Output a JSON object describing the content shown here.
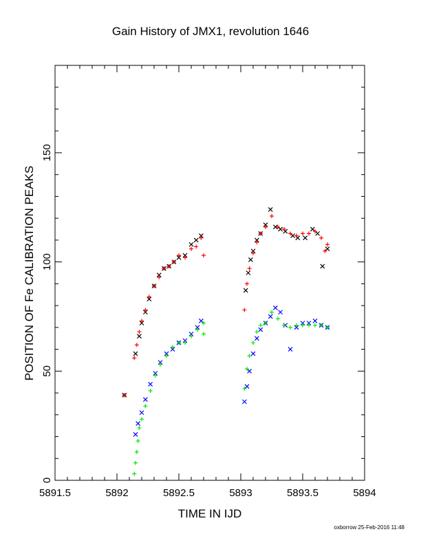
{
  "page": {
    "title": "Gain History of JMX1, revolution 1646",
    "footer": "oxborrow 25-Feb-2016 11:48"
  },
  "chart_data": {
    "type": "scatter",
    "title": "Gain History of JMX1, revolution 1646",
    "xlabel": "TIME IN IJD",
    "ylabel": "POSITION OF Fe CALIBRATION PEAKS",
    "xlim": [
      5891.5,
      5894
    ],
    "ylim": [
      0,
      190
    ],
    "xticks": [
      "5891.5",
      "5892",
      "5892.5",
      "5893",
      "5893.5",
      "5894"
    ],
    "xtick_values": [
      5891.5,
      5892,
      5892.5,
      5893,
      5893.5,
      5894
    ],
    "yticks": [
      "0",
      "50",
      "100",
      "150"
    ],
    "ytick_values": [
      0,
      50,
      100,
      150
    ],
    "grid": false,
    "legend": "none",
    "series": [
      {
        "color": "#000000",
        "marker": "x",
        "points": [
          [
            5892.06,
            39
          ],
          [
            5892.15,
            58
          ],
          [
            5892.18,
            66
          ],
          [
            5892.2,
            72
          ],
          [
            5892.23,
            77
          ],
          [
            5892.26,
            83
          ],
          [
            5892.3,
            89
          ],
          [
            5892.34,
            94
          ],
          [
            5892.38,
            97
          ],
          [
            5892.42,
            98
          ],
          [
            5892.46,
            100
          ],
          [
            5892.5,
            102
          ],
          [
            5892.55,
            103
          ],
          [
            5892.6,
            108
          ],
          [
            5892.64,
            110
          ],
          [
            5892.68,
            112
          ],
          [
            5893.04,
            87
          ],
          [
            5893.06,
            95
          ],
          [
            5893.08,
            101
          ],
          [
            5893.1,
            105
          ],
          [
            5893.13,
            110
          ],
          [
            5893.16,
            113
          ],
          [
            5893.2,
            117
          ],
          [
            5893.24,
            124
          ],
          [
            5893.28,
            116
          ],
          [
            5893.32,
            115
          ],
          [
            5893.36,
            114
          ],
          [
            5893.42,
            112
          ],
          [
            5893.46,
            111
          ],
          [
            5893.52,
            111
          ],
          [
            5893.58,
            115
          ],
          [
            5893.62,
            113
          ],
          [
            5893.66,
            98
          ],
          [
            5893.7,
            106
          ]
        ]
      },
      {
        "color": "#ff0000",
        "marker": "+",
        "points": [
          [
            5892.06,
            39
          ],
          [
            5892.14,
            56
          ],
          [
            5892.16,
            62
          ],
          [
            5892.18,
            68
          ],
          [
            5892.2,
            73
          ],
          [
            5892.23,
            78
          ],
          [
            5892.26,
            84
          ],
          [
            5892.3,
            89
          ],
          [
            5892.34,
            93
          ],
          [
            5892.38,
            97
          ],
          [
            5892.42,
            98
          ],
          [
            5892.46,
            100
          ],
          [
            5892.5,
            103
          ],
          [
            5892.55,
            102
          ],
          [
            5892.6,
            106
          ],
          [
            5892.64,
            107
          ],
          [
            5892.68,
            111
          ],
          [
            5892.7,
            103
          ],
          [
            5893.03,
            78
          ],
          [
            5893.05,
            90
          ],
          [
            5893.07,
            97
          ],
          [
            5893.1,
            104
          ],
          [
            5893.13,
            109
          ],
          [
            5893.16,
            113
          ],
          [
            5893.2,
            116
          ],
          [
            5893.25,
            121
          ],
          [
            5893.3,
            116
          ],
          [
            5893.35,
            115
          ],
          [
            5893.4,
            113
          ],
          [
            5893.45,
            112
          ],
          [
            5893.5,
            113
          ],
          [
            5893.55,
            113
          ],
          [
            5893.6,
            114
          ],
          [
            5893.65,
            111
          ],
          [
            5893.68,
            105
          ],
          [
            5893.7,
            108
          ]
        ]
      },
      {
        "color": "#0000ff",
        "marker": "x",
        "points": [
          [
            5892.15,
            21
          ],
          [
            5892.17,
            26
          ],
          [
            5892.2,
            31
          ],
          [
            5892.23,
            37
          ],
          [
            5892.27,
            44
          ],
          [
            5892.31,
            49
          ],
          [
            5892.35,
            54
          ],
          [
            5892.4,
            58
          ],
          [
            5892.45,
            60
          ],
          [
            5892.5,
            63
          ],
          [
            5892.55,
            64
          ],
          [
            5892.6,
            67
          ],
          [
            5892.65,
            70
          ],
          [
            5892.68,
            73
          ],
          [
            5893.03,
            36
          ],
          [
            5893.05,
            43
          ],
          [
            5893.07,
            50
          ],
          [
            5893.1,
            58
          ],
          [
            5893.13,
            65
          ],
          [
            5893.16,
            69
          ],
          [
            5893.2,
            72
          ],
          [
            5893.24,
            75
          ],
          [
            5893.28,
            79
          ],
          [
            5893.32,
            77
          ],
          [
            5893.36,
            71
          ],
          [
            5893.4,
            60
          ],
          [
            5893.45,
            70
          ],
          [
            5893.5,
            72
          ],
          [
            5893.55,
            72
          ],
          [
            5893.6,
            73
          ],
          [
            5893.65,
            71
          ],
          [
            5893.7,
            70
          ]
        ]
      },
      {
        "color": "#00e600",
        "marker": "+",
        "points": [
          [
            5892.14,
            3
          ],
          [
            5892.15,
            8
          ],
          [
            5892.16,
            13
          ],
          [
            5892.17,
            18
          ],
          [
            5892.18,
            24
          ],
          [
            5892.2,
            28
          ],
          [
            5892.23,
            34
          ],
          [
            5892.27,
            41
          ],
          [
            5892.31,
            48
          ],
          [
            5892.35,
            53
          ],
          [
            5892.4,
            57
          ],
          [
            5892.45,
            61
          ],
          [
            5892.5,
            63
          ],
          [
            5892.55,
            63
          ],
          [
            5892.6,
            66
          ],
          [
            5892.65,
            69
          ],
          [
            5892.7,
            72
          ],
          [
            5892.7,
            67
          ],
          [
            5893.03,
            42
          ],
          [
            5893.05,
            51
          ],
          [
            5893.07,
            57
          ],
          [
            5893.1,
            63
          ],
          [
            5893.13,
            68
          ],
          [
            5893.16,
            71
          ],
          [
            5893.2,
            72
          ],
          [
            5893.25,
            77
          ],
          [
            5893.3,
            74
          ],
          [
            5893.35,
            71
          ],
          [
            5893.4,
            70
          ],
          [
            5893.45,
            71
          ],
          [
            5893.5,
            71
          ],
          [
            5893.55,
            71
          ],
          [
            5893.6,
            71
          ],
          [
            5893.65,
            71
          ],
          [
            5893.7,
            70
          ]
        ]
      }
    ]
  }
}
